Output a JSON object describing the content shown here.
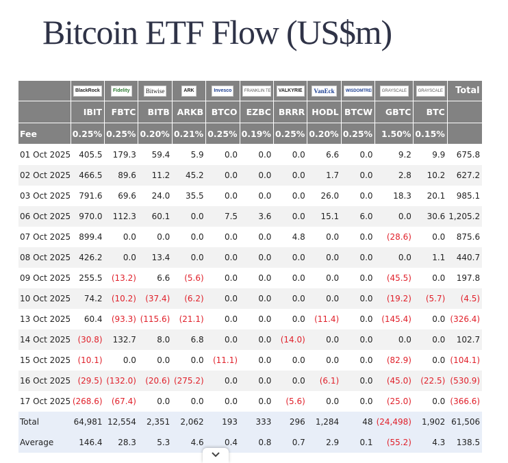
{
  "title": "Bitcoin ETF Flow (US$m)",
  "issuers": [
    {
      "name": "BlackRock",
      "style": "logo-box"
    },
    {
      "name": "Fidelity",
      "style": "logo-box logo-fidelity"
    },
    {
      "name": "Bitwise",
      "style": "logo-box logo-bitwise"
    },
    {
      "name": "ARK",
      "style": "logo-box"
    },
    {
      "name": "Invesco",
      "style": "logo-box logo-invesco"
    },
    {
      "name": "FRANKLIN TEMPLETON",
      "style": "logo-box logo-gray"
    },
    {
      "name": "VALKYRIE",
      "style": "logo-box"
    },
    {
      "name": "VanEck",
      "style": "logo-box logo-vaneck"
    },
    {
      "name": "WISDOMTREE",
      "style": "logo-box logo-wisdom"
    },
    {
      "name": "GRAYSCALE",
      "style": "logo-box logo-gray"
    },
    {
      "name": "GRAYSCALE",
      "style": "logo-box logo-gray"
    }
  ],
  "total_header": "Total",
  "tickers": [
    "IBIT",
    "FBTC",
    "BITB",
    "ARKB",
    "BTCO",
    "EZBC",
    "BRRR",
    "HODL",
    "BTCW",
    "GBTC",
    "BTC"
  ],
  "fee_label": "Fee",
  "fees": [
    "0.25%",
    "0.25%",
    "0.20%",
    "0.21%",
    "0.25%",
    "0.19%",
    "0.25%",
    "0.20%",
    "0.25%",
    "1.50%",
    "0.15%"
  ],
  "rows": [
    {
      "date": "01 Oct 2025",
      "values": [
        "405.5",
        "179.3",
        "59.4",
        "5.9",
        "0.0",
        "0.0",
        "0.0",
        "6.6",
        "0.0",
        "9.2",
        "9.9",
        "675.8"
      ]
    },
    {
      "date": "02 Oct 2025",
      "values": [
        "466.5",
        "89.6",
        "11.2",
        "45.2",
        "0.0",
        "0.0",
        "0.0",
        "1.7",
        "0.0",
        "2.8",
        "10.2",
        "627.2"
      ]
    },
    {
      "date": "03 Oct 2025",
      "values": [
        "791.6",
        "69.6",
        "24.0",
        "35.5",
        "0.0",
        "0.0",
        "0.0",
        "26.0",
        "0.0",
        "18.3",
        "20.1",
        "985.1"
      ]
    },
    {
      "date": "06 Oct 2025",
      "values": [
        "970.0",
        "112.3",
        "60.1",
        "0.0",
        "7.5",
        "3.6",
        "0.0",
        "15.1",
        "6.0",
        "0.0",
        "30.6",
        "1,205.2"
      ]
    },
    {
      "date": "07 Oct 2025",
      "values": [
        "899.4",
        "0.0",
        "0.0",
        "0.0",
        "0.0",
        "0.0",
        "4.8",
        "0.0",
        "0.0",
        "(28.6)",
        "0.0",
        "875.6"
      ]
    },
    {
      "date": "08 Oct 2025",
      "values": [
        "426.2",
        "0.0",
        "13.4",
        "0.0",
        "0.0",
        "0.0",
        "0.0",
        "0.0",
        "0.0",
        "0.0",
        "1.1",
        "440.7"
      ]
    },
    {
      "date": "09 Oct 2025",
      "values": [
        "255.5",
        "(13.2)",
        "6.6",
        "(5.6)",
        "0.0",
        "0.0",
        "0.0",
        "0.0",
        "0.0",
        "(45.5)",
        "0.0",
        "197.8"
      ]
    },
    {
      "date": "10 Oct 2025",
      "values": [
        "74.2",
        "(10.2)",
        "(37.4)",
        "(6.2)",
        "0.0",
        "0.0",
        "0.0",
        "0.0",
        "0.0",
        "(19.2)",
        "(5.7)",
        "(4.5)"
      ]
    },
    {
      "date": "13 Oct 2025",
      "values": [
        "60.4",
        "(93.3)",
        "(115.6)",
        "(21.1)",
        "0.0",
        "0.0",
        "0.0",
        "(11.4)",
        "0.0",
        "(145.4)",
        "0.0",
        "(326.4)"
      ]
    },
    {
      "date": "14 Oct 2025",
      "values": [
        "(30.8)",
        "132.7",
        "8.0",
        "6.8",
        "0.0",
        "0.0",
        "(14.0)",
        "0.0",
        "0.0",
        "0.0",
        "0.0",
        "102.7"
      ]
    },
    {
      "date": "15 Oct 2025",
      "values": [
        "(10.1)",
        "0.0",
        "0.0",
        "0.0",
        "(11.1)",
        "0.0",
        "0.0",
        "0.0",
        "0.0",
        "(82.9)",
        "0.0",
        "(104.1)"
      ]
    },
    {
      "date": "16 Oct 2025",
      "values": [
        "(29.5)",
        "(132.0)",
        "(20.6)",
        "(275.2)",
        "0.0",
        "0.0",
        "0.0",
        "(6.1)",
        "0.0",
        "(45.0)",
        "(22.5)",
        "(530.9)"
      ]
    },
    {
      "date": "17 Oct 2025",
      "values": [
        "(268.6)",
        "(67.4)",
        "0.0",
        "0.0",
        "0.0",
        "0.0",
        "(5.6)",
        "0.0",
        "0.0",
        "(25.0)",
        "0.0",
        "(366.6)"
      ]
    }
  ],
  "summary": [
    {
      "label": "Total",
      "values": [
        "64,981",
        "12,554",
        "2,351",
        "2,062",
        "193",
        "333",
        "296",
        "1,284",
        "48",
        "(24,498)",
        "1,902",
        "61,506"
      ]
    },
    {
      "label": "Average",
      "values": [
        "146.4",
        "28.3",
        "5.3",
        "4.6",
        "0.4",
        "0.8",
        "0.7",
        "2.9",
        "0.1",
        "(55.2)",
        "4.3",
        "138.5"
      ]
    }
  ],
  "scroll_icon": "chevron-down-icon"
}
